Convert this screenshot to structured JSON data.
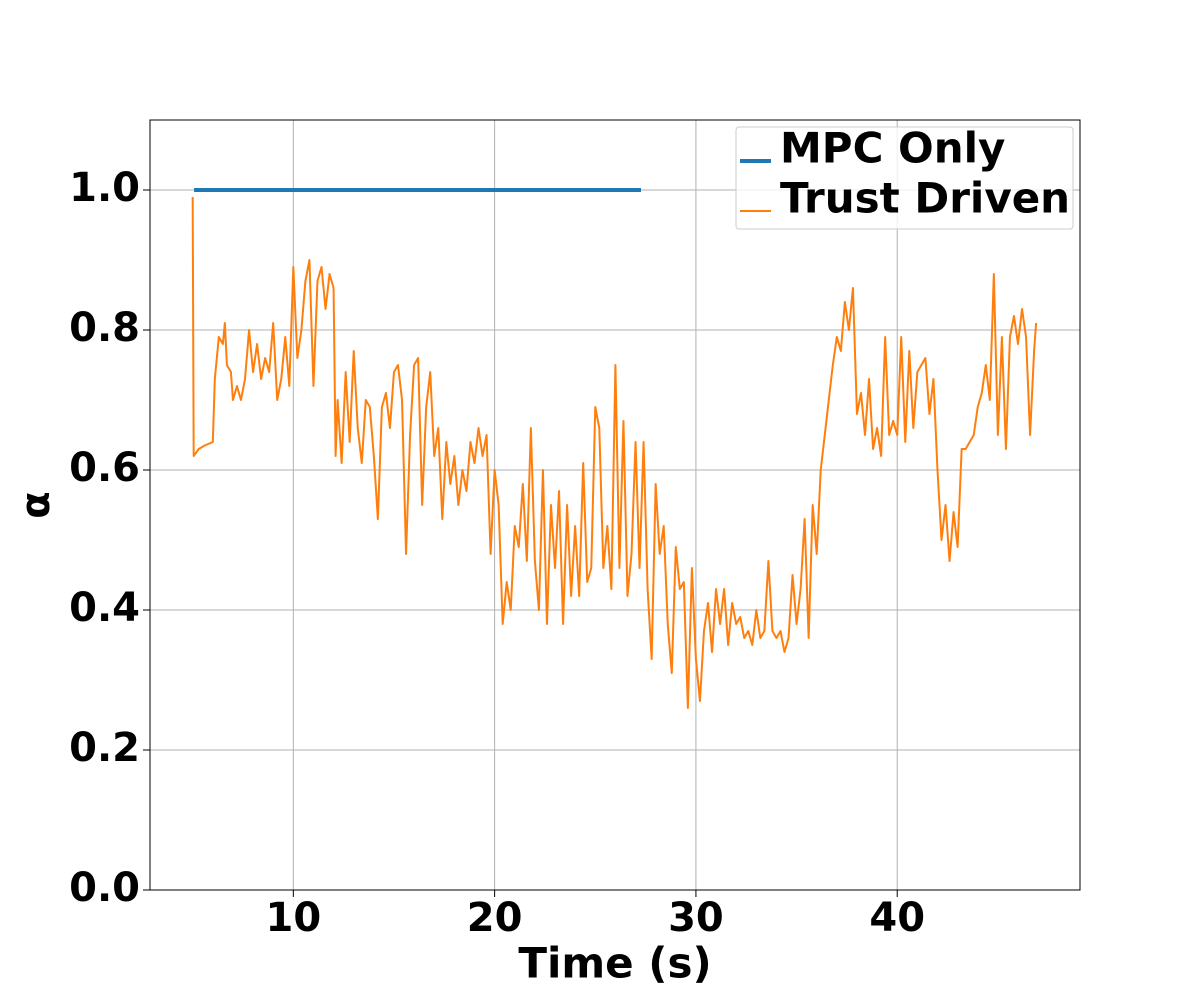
{
  "chart_data": {
    "type": "line",
    "xlabel": "Time (s)",
    "ylabel": "α",
    "xlim": [
      2.88,
      49.08
    ],
    "ylim": [
      0,
      1.1
    ],
    "xticks": [
      10,
      20,
      30,
      40
    ],
    "yticks": [
      {
        "value": 0,
        "label": "0.0"
      },
      {
        "value": 0.2,
        "label": "0.2"
      },
      {
        "value": 0.4,
        "label": "0.4"
      },
      {
        "value": 0.6,
        "label": "0.6"
      },
      {
        "value": 0.8,
        "label": "0.8"
      },
      {
        "value": 1,
        "label": "1.0"
      }
    ],
    "grid": true,
    "legend": "upper right",
    "series": [
      {
        "name": "MPC Only",
        "color": "#1f77b4",
        "x": [
          5.07,
          27.27
        ],
        "values": [
          1.0,
          1.0
        ]
      },
      {
        "name": "Trust Driven",
        "color": "#ff7f0e",
        "x": [
          5.0,
          5.05,
          5.3,
          5.6,
          6.0,
          6.1,
          6.3,
          6.5,
          6.6,
          6.7,
          6.9,
          7.0,
          7.2,
          7.4,
          7.6,
          7.8,
          8.0,
          8.2,
          8.4,
          8.6,
          8.8,
          9.0,
          9.2,
          9.4,
          9.6,
          9.8,
          10.0,
          10.2,
          10.4,
          10.6,
          10.8,
          11.0,
          11.2,
          11.4,
          11.6,
          11.8,
          12.0,
          12.1,
          12.2,
          12.4,
          12.6,
          12.8,
          13.0,
          13.2,
          13.4,
          13.6,
          13.8,
          14.0,
          14.2,
          14.4,
          14.6,
          14.8,
          15.0,
          15.2,
          15.4,
          15.6,
          15.8,
          16.0,
          16.2,
          16.4,
          16.6,
          16.8,
          17.0,
          17.2,
          17.4,
          17.6,
          17.8,
          18.0,
          18.2,
          18.4,
          18.6,
          18.8,
          19.0,
          19.2,
          19.4,
          19.6,
          19.8,
          20.0,
          20.2,
          20.4,
          20.6,
          20.8,
          21.0,
          21.2,
          21.4,
          21.6,
          21.8,
          22.0,
          22.2,
          22.4,
          22.6,
          22.8,
          23.0,
          23.2,
          23.4,
          23.6,
          23.8,
          24.0,
          24.2,
          24.4,
          24.6,
          24.8,
          25.0,
          25.2,
          25.4,
          25.6,
          25.8,
          26.0,
          26.2,
          26.4,
          26.6,
          26.8,
          27.0,
          27.2,
          27.4,
          27.6,
          27.8,
          28.0,
          28.2,
          28.4,
          28.6,
          28.8,
          29.0,
          29.2,
          29.4,
          29.6,
          29.8,
          30.0,
          30.2,
          30.4,
          30.6,
          30.8,
          31.0,
          31.2,
          31.4,
          31.6,
          31.8,
          32.0,
          32.2,
          32.4,
          32.6,
          32.8,
          33.0,
          33.2,
          33.4,
          33.6,
          33.8,
          34.0,
          34.2,
          34.4,
          34.6,
          34.8,
          35.0,
          35.2,
          35.4,
          35.6,
          35.8,
          36.0,
          36.2,
          36.4,
          36.6,
          36.8,
          37.0,
          37.2,
          37.4,
          37.6,
          37.8,
          38.0,
          38.2,
          38.4,
          38.6,
          38.8,
          39.0,
          39.2,
          39.4,
          39.6,
          39.8,
          40.0,
          40.2,
          40.4,
          40.6,
          40.8,
          41.0,
          41.2,
          41.4,
          41.6,
          41.8,
          42.0,
          42.2,
          42.4,
          42.6,
          42.8,
          43.0,
          43.2,
          43.4,
          43.6,
          43.8,
          44.0,
          44.2,
          44.4,
          44.6,
          44.8,
          45.0,
          45.2,
          45.4,
          45.6,
          45.8,
          46.0,
          46.2,
          46.4,
          46.6,
          46.8,
          46.9
        ],
        "values": [
          0.99,
          0.62,
          0.63,
          0.635,
          0.64,
          0.73,
          0.79,
          0.78,
          0.81,
          0.75,
          0.74,
          0.7,
          0.72,
          0.7,
          0.73,
          0.8,
          0.74,
          0.78,
          0.73,
          0.76,
          0.74,
          0.81,
          0.7,
          0.73,
          0.79,
          0.72,
          0.89,
          0.76,
          0.8,
          0.87,
          0.9,
          0.72,
          0.87,
          0.89,
          0.83,
          0.88,
          0.86,
          0.62,
          0.7,
          0.61,
          0.74,
          0.64,
          0.77,
          0.66,
          0.61,
          0.7,
          0.69,
          0.62,
          0.53,
          0.69,
          0.71,
          0.66,
          0.74,
          0.75,
          0.7,
          0.48,
          0.65,
          0.75,
          0.76,
          0.55,
          0.69,
          0.74,
          0.62,
          0.66,
          0.53,
          0.64,
          0.58,
          0.62,
          0.55,
          0.6,
          0.57,
          0.64,
          0.61,
          0.66,
          0.62,
          0.65,
          0.48,
          0.6,
          0.55,
          0.38,
          0.44,
          0.4,
          0.52,
          0.49,
          0.58,
          0.47,
          0.66,
          0.47,
          0.4,
          0.6,
          0.38,
          0.55,
          0.46,
          0.57,
          0.38,
          0.55,
          0.42,
          0.52,
          0.42,
          0.61,
          0.44,
          0.46,
          0.69,
          0.66,
          0.46,
          0.52,
          0.43,
          0.75,
          0.46,
          0.67,
          0.42,
          0.48,
          0.64,
          0.46,
          0.64,
          0.43,
          0.33,
          0.58,
          0.48,
          0.52,
          0.38,
          0.31,
          0.49,
          0.43,
          0.44,
          0.26,
          0.46,
          0.33,
          0.27,
          0.37,
          0.41,
          0.34,
          0.43,
          0.38,
          0.43,
          0.35,
          0.41,
          0.38,
          0.39,
          0.36,
          0.37,
          0.35,
          0.4,
          0.36,
          0.37,
          0.47,
          0.37,
          0.36,
          0.37,
          0.34,
          0.36,
          0.45,
          0.38,
          0.43,
          0.53,
          0.36,
          0.55,
          0.48,
          0.6,
          0.65,
          0.7,
          0.75,
          0.79,
          0.77,
          0.84,
          0.8,
          0.86,
          0.68,
          0.71,
          0.65,
          0.73,
          0.63,
          0.66,
          0.62,
          0.79,
          0.65,
          0.67,
          0.65,
          0.79,
          0.64,
          0.77,
          0.66,
          0.74,
          0.75,
          0.76,
          0.68,
          0.73,
          0.6,
          0.5,
          0.55,
          0.47,
          0.54,
          0.49,
          0.63,
          0.63,
          0.64,
          0.65,
          0.69,
          0.71,
          0.75,
          0.7,
          0.88,
          0.65,
          0.79,
          0.63,
          0.79,
          0.82,
          0.78,
          0.83,
          0.79,
          0.65,
          0.77,
          0.81
        ]
      }
    ]
  }
}
